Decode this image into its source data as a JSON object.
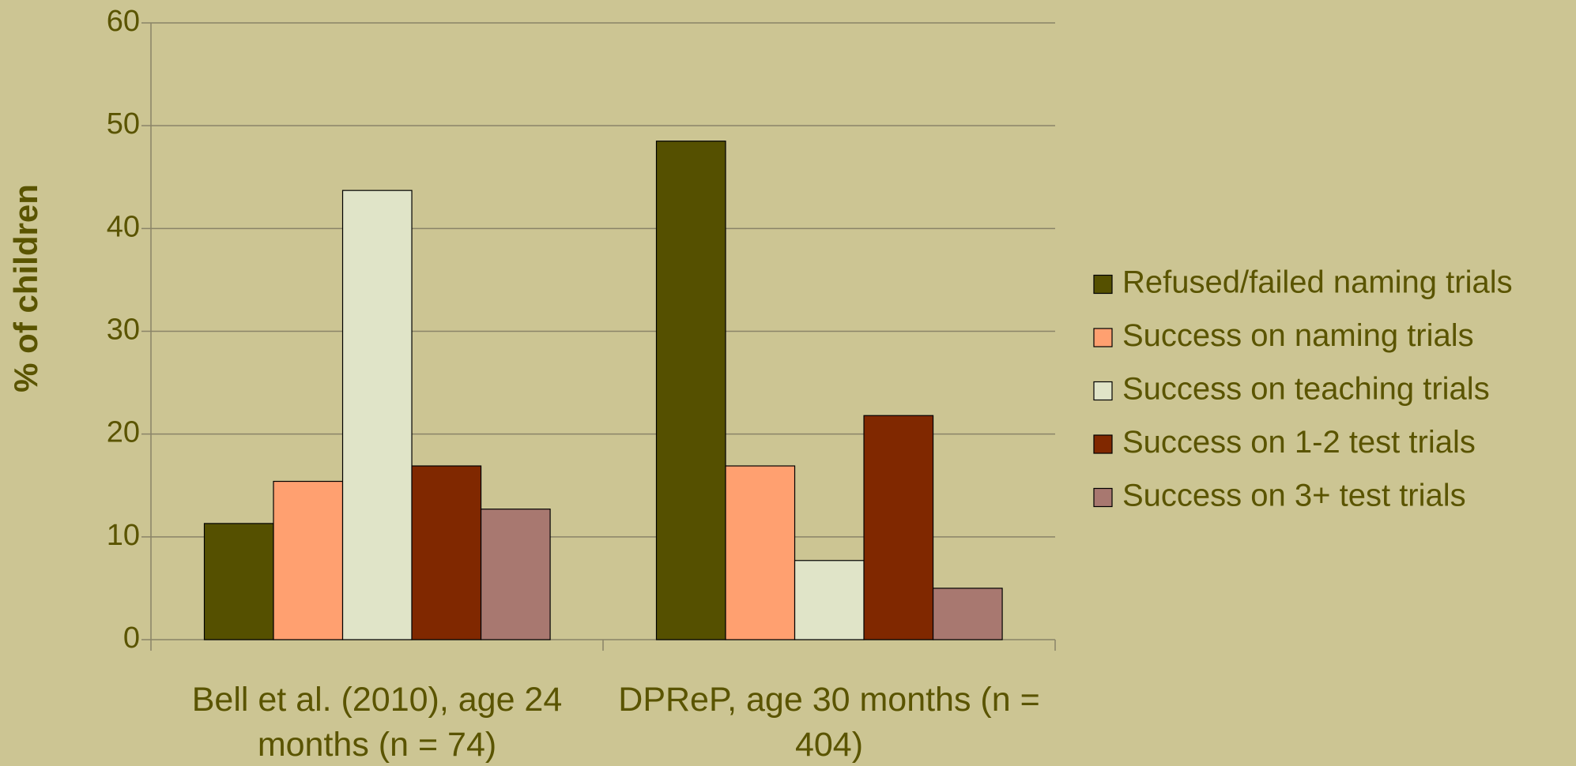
{
  "chart_data": {
    "type": "bar",
    "y_label": "% of children",
    "categories": [
      "Bell et al. (2010), age 24 months (n = 74)",
      "DPReP, age 30 months (n = 404)"
    ],
    "series": [
      {
        "name": "Refused/failed naming trials",
        "color": "#555000",
        "values": [
          11.3,
          48.5
        ]
      },
      {
        "name": "Success on naming trials",
        "color": "#ffa070",
        "values": [
          15.4,
          16.9
        ]
      },
      {
        "name": "Success on teaching trials",
        "color": "#e0e4c8",
        "values": [
          43.7,
          7.7
        ]
      },
      {
        "name": "Success on 1-2 test trials",
        "color": "#802800",
        "values": [
          16.9,
          21.8
        ]
      },
      {
        "name": "Success on 3+ test trials",
        "color": "#a87870",
        "values": [
          12.7,
          5.0
        ]
      }
    ],
    "ylim": [
      0,
      60
    ],
    "yticks": [
      0,
      10,
      20,
      30,
      40,
      50,
      60
    ],
    "grid": true,
    "legend": "right"
  }
}
